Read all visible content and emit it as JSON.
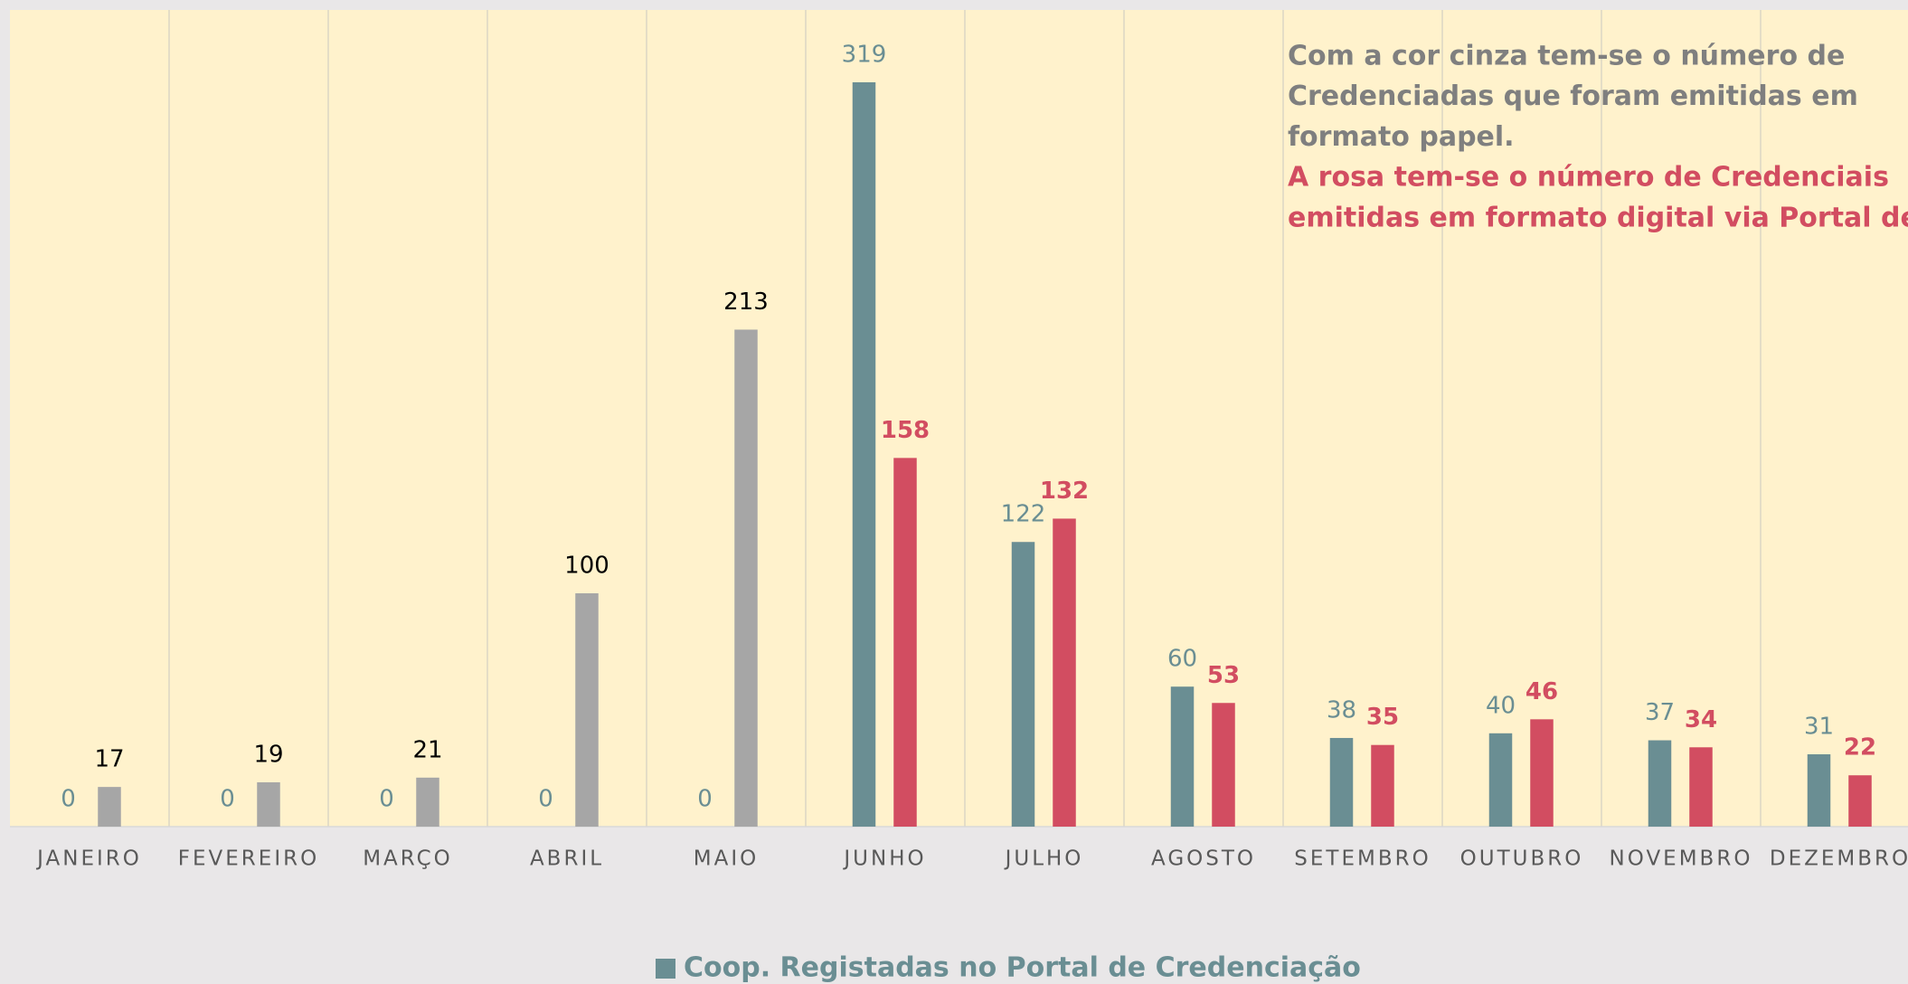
{
  "chart_data": {
    "type": "bar",
    "categories": [
      "JANEIRO",
      "FEVEREIRO",
      "MARÇO",
      "ABRIL",
      "MAIO",
      "JUNHO",
      "JULHO",
      "AGOSTO",
      "SETEMBRO",
      "OUTUBRO",
      "NOVEMBRO",
      "DEZEMBRO"
    ],
    "series": [
      {
        "name": "Coop. Registadas no Portal de Credenciação",
        "color": "#6a8e93",
        "label_color": "#6a8e93",
        "values": [
          0,
          0,
          0,
          0,
          0,
          319,
          122,
          60,
          38,
          40,
          37,
          31
        ]
      },
      {
        "colors": [
          "#a6a6a6",
          "#a6a6a6",
          "#a6a6a6",
          "#a6a6a6",
          "#a6a6a6",
          "#d24d61",
          "#d24d61",
          "#d24d61",
          "#d24d61",
          "#d24d61",
          "#d24d61",
          "#d24d61"
        ],
        "label_colors": [
          "#000000",
          "#000000",
          "#000000",
          "#000000",
          "#000000",
          "#d24d61",
          "#d24d61",
          "#d24d61",
          "#d24d61",
          "#d24d61",
          "#d24d61",
          "#d24d61"
        ],
        "values": [
          17,
          19,
          21,
          100,
          213,
          158,
          132,
          53,
          35,
          46,
          34,
          22
        ]
      }
    ],
    "ylim": [
      0,
      350
    ],
    "grid": "x",
    "annotations": [
      {
        "color": "#7f7f7f",
        "lines": [
          "Com a cor cinza tem-se o número de",
          "Credenciadas que foram emitidas em",
          "formato papel."
        ]
      },
      {
        "color": "#d24d61",
        "lines": [
          "A rosa tem-se o número de Credenciais",
          "emitidas em formato digital via Portal de"
        ]
      }
    ]
  }
}
